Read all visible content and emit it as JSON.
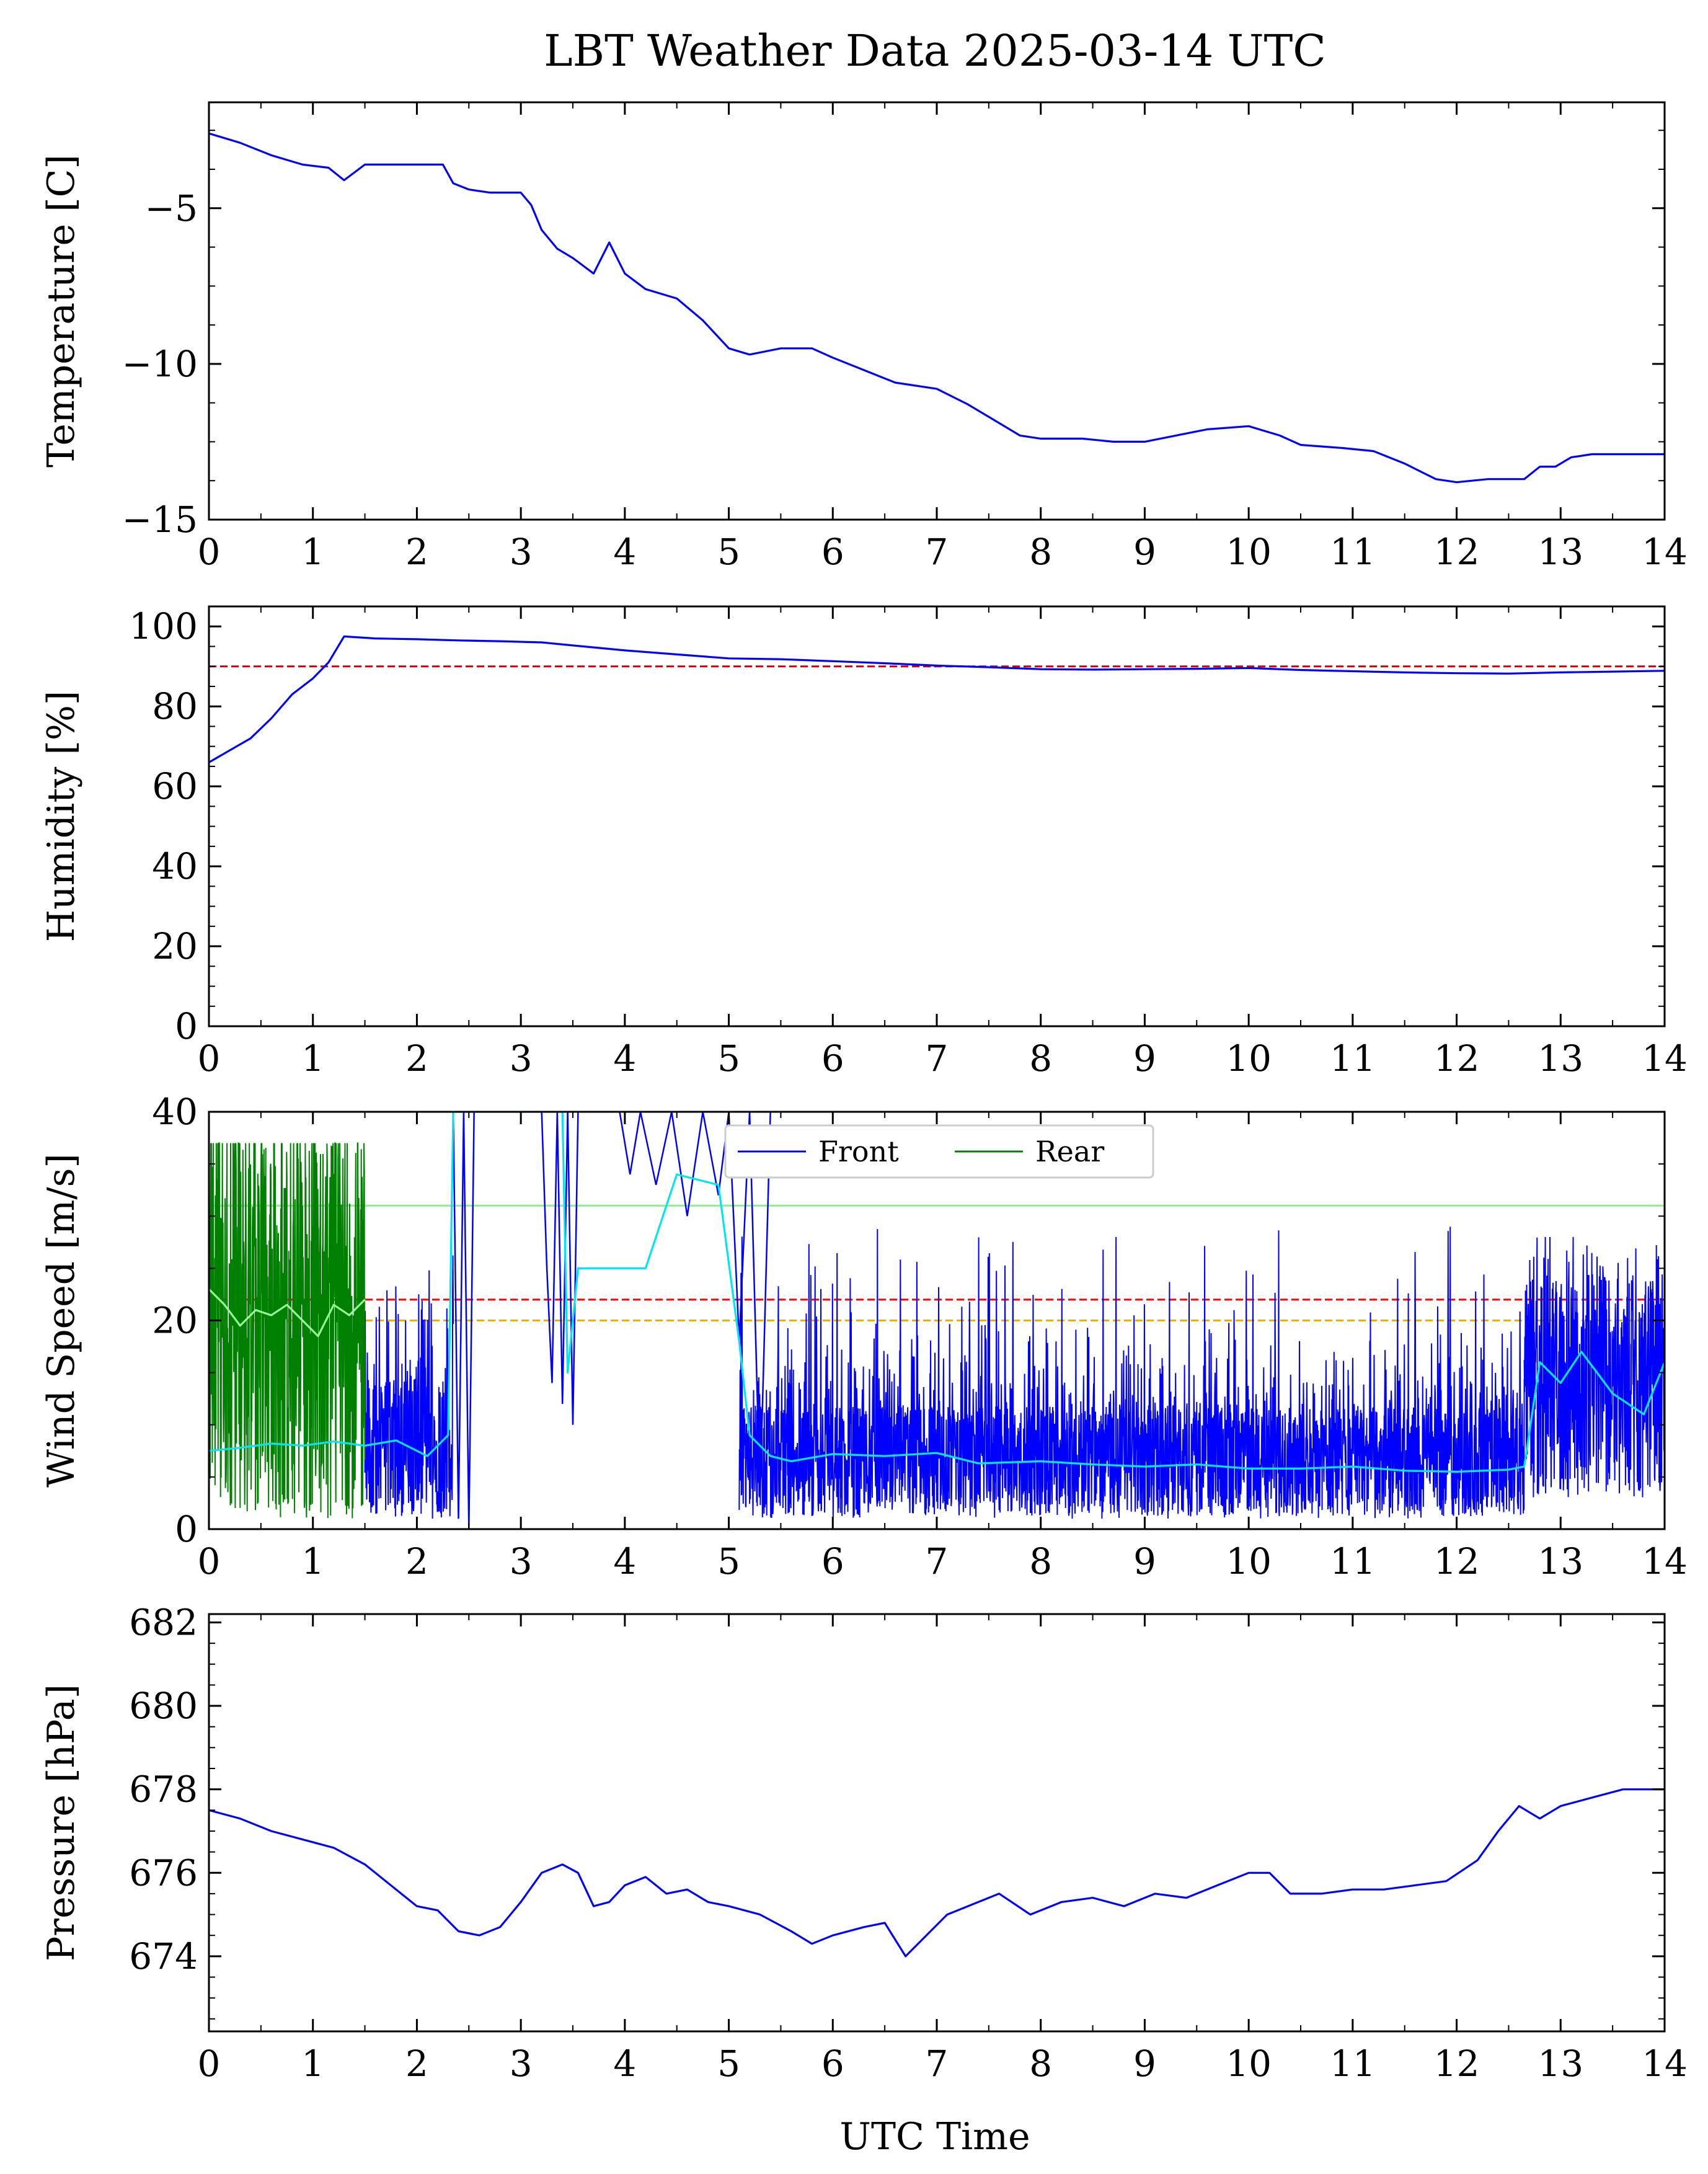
{
  "figure": {
    "title": "LBT Weather Data 2025-03-14 UTC",
    "xlabel": "UTC Time"
  },
  "chart_data": [
    {
      "id": "temperature",
      "type": "line",
      "ylabel": "Temperature [C]",
      "xlim": [
        0,
        14
      ],
      "ylim": [
        -15,
        -1.6
      ],
      "xticks": [
        0,
        1,
        2,
        3,
        4,
        5,
        6,
        7,
        8,
        9,
        10,
        11,
        12,
        13,
        14
      ],
      "yticks": [
        -15,
        -10,
        -5
      ],
      "ytick_labels": [
        "−15",
        "−10",
        "−5"
      ],
      "grid": false,
      "series": [
        {
          "color": "#0000ff",
          "x": [
            0,
            0.3,
            0.6,
            0.9,
            1.15,
            1.3,
            1.5,
            2.0,
            2.25,
            2.35,
            2.5,
            2.7,
            3.0,
            3.1,
            3.2,
            3.35,
            3.5,
            3.7,
            3.85,
            4.0,
            4.2,
            4.5,
            4.75,
            5.0,
            5.2,
            5.5,
            5.8,
            6.0,
            6.3,
            6.6,
            7.0,
            7.3,
            7.6,
            7.8,
            8.0,
            8.4,
            8.7,
            9.0,
            9.3,
            9.6,
            10.0,
            10.3,
            10.5,
            10.9,
            11.2,
            11.5,
            11.8,
            12.0,
            12.3,
            12.65,
            12.8,
            12.95,
            13.1,
            13.3,
            13.6,
            14.0
          ],
          "y": [
            -2.6,
            -2.9,
            -3.3,
            -3.6,
            -3.7,
            -4.1,
            -3.6,
            -3.6,
            -3.6,
            -4.2,
            -4.4,
            -4.5,
            -4.5,
            -4.9,
            -5.7,
            -6.3,
            -6.6,
            -7.1,
            -6.1,
            -7.1,
            -7.6,
            -7.9,
            -8.6,
            -9.5,
            -9.7,
            -9.5,
            -9.5,
            -9.8,
            -10.2,
            -10.6,
            -10.8,
            -11.3,
            -11.9,
            -12.3,
            -12.4,
            -12.4,
            -12.5,
            -12.5,
            -12.3,
            -12.1,
            -12.0,
            -12.3,
            -12.6,
            -12.7,
            -12.8,
            -13.2,
            -13.7,
            -13.8,
            -13.7,
            -13.7,
            -13.3,
            -13.3,
            -13.0,
            -12.9,
            -12.9,
            -12.9
          ]
        }
      ]
    },
    {
      "id": "humidity",
      "type": "line",
      "ylabel": "Humidity [%]",
      "xlim": [
        0,
        14
      ],
      "ylim": [
        0,
        105
      ],
      "xticks": [
        0,
        1,
        2,
        3,
        4,
        5,
        6,
        7,
        8,
        9,
        10,
        11,
        12,
        13,
        14
      ],
      "yticks": [
        0,
        20,
        40,
        60,
        80,
        100
      ],
      "ytick_labels": [
        "0",
        "20",
        "40",
        "60",
        "80",
        "100"
      ],
      "grid": false,
      "hlines": [
        {
          "y": 90,
          "color": "#cc0000",
          "dash": true
        }
      ],
      "series": [
        {
          "color": "#0000ff",
          "x": [
            0,
            0.2,
            0.4,
            0.6,
            0.8,
            1.0,
            1.15,
            1.3,
            1.6,
            2.0,
            2.4,
            2.8,
            3.2,
            3.6,
            4.0,
            4.5,
            5.0,
            5.5,
            6.0,
            6.5,
            7.0,
            7.5,
            8.0,
            8.5,
            9.0,
            9.5,
            10.0,
            10.5,
            11.0,
            11.5,
            12.0,
            12.5,
            13.0,
            13.5,
            14.0
          ],
          "y": [
            66,
            69,
            72,
            77,
            83,
            87,
            91,
            97.5,
            97,
            96.8,
            96.5,
            96.3,
            96,
            95,
            94,
            93,
            92,
            91.8,
            91.3,
            90.8,
            90.2,
            89.8,
            89.3,
            89.2,
            89.3,
            89.4,
            89.6,
            89.1,
            88.8,
            88.5,
            88.3,
            88.2,
            88.5,
            88.7,
            88.9
          ]
        }
      ]
    },
    {
      "id": "wind",
      "type": "line",
      "ylabel": "Wind Speed [m/s]",
      "xlim": [
        0,
        14
      ],
      "ylim": [
        0,
        40
      ],
      "xticks": [
        0,
        1,
        2,
        3,
        4,
        5,
        6,
        7,
        8,
        9,
        10,
        11,
        12,
        13,
        14
      ],
      "yticks": [
        0,
        20,
        40
      ],
      "ytick_labels": [
        "0",
        "20",
        "40"
      ],
      "grid": false,
      "legend": {
        "placement": "top-center",
        "entries": [
          {
            "name": "Front",
            "color": "#0000ff"
          },
          {
            "name": "Rear",
            "color": "#008000"
          }
        ]
      },
      "hlines": [
        {
          "y": 22,
          "color": "#ff0000",
          "dash": true
        },
        {
          "y": 20,
          "color": "#e6b400",
          "dash": true
        },
        {
          "y": 31,
          "color": "#90ee90",
          "dash": false
        }
      ],
      "series": [
        {
          "name": "Front",
          "color": "#0000ff",
          "style": "noisy",
          "segments": [
            {
              "x0": 1.5,
              "x1": 2.35,
              "base": 8,
              "lo": 1,
              "hi": 27
            },
            {
              "x0": 5.1,
              "x1": 12.65,
              "base": 6.5,
              "lo": 1,
              "hi": 29
            },
            {
              "x0": 12.65,
              "x1": 14.0,
              "base": 14,
              "lo": 3,
              "hi": 28
            }
          ],
          "gaps": [
            {
              "x": [
                2.35,
                2.4,
                2.45,
                2.5,
                2.55
              ],
              "y": [
                40,
                1,
                40,
                0,
                40
              ]
            },
            {
              "x": [
                3.2,
                3.25,
                3.3,
                3.35,
                3.4,
                3.45,
                3.5,
                3.55
              ],
              "y": [
                40,
                25,
                14,
                40,
                12,
                40,
                10,
                40
              ]
            },
            {
              "x": [
                3.95,
                4.05,
                4.15,
                4.3,
                4.45,
                4.6,
                4.75,
                4.9,
                5.0,
                5.1,
                5.2,
                5.3,
                5.4
              ],
              "y": [
                40,
                34,
                40,
                33,
                40,
                30,
                40,
                32,
                40,
                18,
                40,
                3,
                40
              ]
            }
          ]
        },
        {
          "name": "Rear",
          "color": "#008000",
          "style": "noisy",
          "segments": [
            {
              "x0": 0.0,
              "x1": 1.5,
              "base": 21,
              "lo": 1,
              "hi": 37
            }
          ]
        },
        {
          "name": "Front (mean)",
          "color": "#00e5ee",
          "x": [
            0,
            0.3,
            0.6,
            0.9,
            1.2,
            1.5,
            1.8,
            2.1,
            2.3,
            2.35,
            2.4,
            3.4,
            3.45,
            3.55,
            4.2,
            4.5,
            4.9,
            5.1,
            5.2,
            5.4,
            5.6,
            6.0,
            6.5,
            7.0,
            7.4,
            8.0,
            8.5,
            9.0,
            9.5,
            10.0,
            10.5,
            11.0,
            11.5,
            12.0,
            12.5,
            12.65,
            12.8,
            13.0,
            13.2,
            13.5,
            13.8,
            14.0
          ],
          "y": [
            7.5,
            7.8,
            8.2,
            8.0,
            8.4,
            8.0,
            8.5,
            7.0,
            9.0,
            40,
            40,
            40,
            15,
            25,
            25,
            34,
            33,
            18,
            9,
            7.0,
            6.5,
            7.2,
            7.0,
            7.3,
            6.3,
            6.5,
            6.2,
            6.0,
            6.2,
            5.8,
            5.8,
            6.0,
            5.6,
            5.5,
            5.7,
            6.0,
            16,
            14,
            17,
            13,
            11,
            16
          ]
        },
        {
          "name": "Rear (mean)",
          "color": "#98fb98",
          "x": [
            0,
            0.15,
            0.3,
            0.45,
            0.6,
            0.75,
            0.9,
            1.05,
            1.2,
            1.35,
            1.5
          ],
          "y": [
            23,
            21.5,
            19.5,
            21,
            20.5,
            21.5,
            20,
            18.5,
            21.5,
            20.5,
            22
          ]
        }
      ]
    },
    {
      "id": "pressure",
      "type": "line",
      "ylabel": "Pressure [hPa]",
      "xlim": [
        0,
        14
      ],
      "ylim": [
        672.2,
        682.2
      ],
      "xticks": [
        0,
        1,
        2,
        3,
        4,
        5,
        6,
        7,
        8,
        9,
        10,
        11,
        12,
        13,
        14
      ],
      "yticks": [
        674,
        676,
        678,
        680,
        682
      ],
      "ytick_labels": [
        "674",
        "676",
        "678",
        "680",
        "682"
      ],
      "grid": false,
      "series": [
        {
          "color": "#0000ff",
          "x": [
            0,
            0.3,
            0.6,
            0.9,
            1.2,
            1.5,
            1.8,
            2.0,
            2.2,
            2.4,
            2.6,
            2.8,
            3.0,
            3.2,
            3.4,
            3.55,
            3.7,
            3.85,
            4.0,
            4.2,
            4.4,
            4.6,
            4.8,
            5.0,
            5.3,
            5.6,
            5.8,
            6.0,
            6.3,
            6.5,
            6.7,
            6.9,
            7.1,
            7.3,
            7.6,
            7.9,
            8.2,
            8.5,
            8.8,
            9.1,
            9.4,
            9.7,
            10.0,
            10.2,
            10.4,
            10.7,
            11.0,
            11.3,
            11.6,
            11.9,
            12.2,
            12.4,
            12.6,
            12.8,
            13.0,
            13.3,
            13.6,
            14.0
          ],
          "y": [
            677.5,
            677.3,
            677.0,
            676.8,
            676.6,
            676.2,
            675.6,
            675.2,
            675.1,
            674.6,
            674.5,
            674.7,
            675.3,
            676.0,
            676.2,
            676.0,
            675.2,
            675.3,
            675.7,
            675.9,
            675.5,
            675.6,
            675.3,
            675.2,
            675.0,
            674.6,
            674.3,
            674.5,
            674.7,
            674.8,
            674.0,
            674.5,
            675.0,
            675.2,
            675.5,
            675.0,
            675.3,
            675.4,
            675.2,
            675.5,
            675.4,
            675.7,
            676.0,
            676.0,
            675.5,
            675.5,
            675.6,
            675.6,
            675.7,
            675.8,
            676.3,
            677.0,
            677.6,
            677.3,
            677.6,
            677.8,
            678.0,
            678.0
          ]
        }
      ]
    }
  ]
}
